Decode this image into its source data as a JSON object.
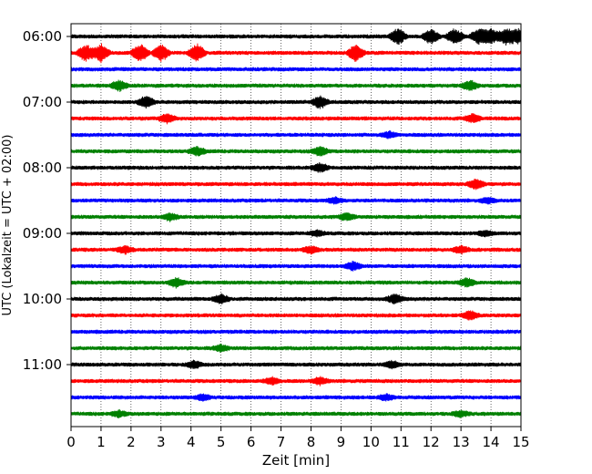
{
  "chart_data": {
    "type": "line",
    "xlabel": "Zeit  [min]",
    "ylabel": "UTC (Lokalzeit = UTC + 02:00)",
    "xlim": [
      0,
      15
    ],
    "x_ticks": [
      0,
      1,
      2,
      3,
      4,
      5,
      6,
      7,
      8,
      9,
      10,
      11,
      12,
      13,
      14,
      15
    ],
    "y_ticks": [
      "06:00",
      "07:00",
      "08:00",
      "09:00",
      "10:00",
      "11:00"
    ],
    "y_start": "06:00",
    "trace_interval_min": 15,
    "trace_count": 24,
    "trace_colors": [
      "#000000",
      "#ff0000",
      "#0000ff",
      "#008000"
    ],
    "grid_vertical": true,
    "grid_style": "dotted",
    "events": [
      {
        "trace": 0,
        "minutes": [
          10.9,
          12.0,
          12.8,
          13.6,
          14.0,
          14.5,
          14.9
        ],
        "amp": 0.9
      },
      {
        "trace": 1,
        "minutes": [
          0.5,
          1.0,
          2.3,
          3.0,
          4.2,
          9.5
        ],
        "amp": 1.0
      },
      {
        "trace": 3,
        "minutes": [
          1.6,
          13.3
        ],
        "amp": 0.6
      },
      {
        "trace": 4,
        "minutes": [
          2.5,
          8.3
        ],
        "amp": 0.7
      },
      {
        "trace": 5,
        "minutes": [
          3.2,
          13.4
        ],
        "amp": 0.5
      },
      {
        "trace": 6,
        "minutes": [
          10.6
        ],
        "amp": 0.35
      },
      {
        "trace": 7,
        "minutes": [
          4.2,
          8.3
        ],
        "amp": 0.5
      },
      {
        "trace": 8,
        "minutes": [
          8.3
        ],
        "amp": 0.5
      },
      {
        "trace": 9,
        "minutes": [
          13.5
        ],
        "amp": 0.6
      },
      {
        "trace": 10,
        "minutes": [
          8.8,
          13.9
        ],
        "amp": 0.3
      },
      {
        "trace": 11,
        "minutes": [
          3.3,
          9.2
        ],
        "amp": 0.4
      },
      {
        "trace": 12,
        "minutes": [
          8.2,
          13.8
        ],
        "amp": 0.3
      },
      {
        "trace": 13,
        "minutes": [
          1.8,
          8.0,
          13.0
        ],
        "amp": 0.4
      },
      {
        "trace": 14,
        "minutes": [
          9.4
        ],
        "amp": 0.5
      },
      {
        "trace": 15,
        "minutes": [
          3.5,
          13.2
        ],
        "amp": 0.5
      },
      {
        "trace": 16,
        "minutes": [
          5.0,
          10.8
        ],
        "amp": 0.5
      },
      {
        "trace": 17,
        "minutes": [
          13.3
        ],
        "amp": 0.5
      },
      {
        "trace": 19,
        "minutes": [
          5.0
        ],
        "amp": 0.35
      },
      {
        "trace": 20,
        "minutes": [
          4.1,
          10.7
        ],
        "amp": 0.4
      },
      {
        "trace": 21,
        "minutes": [
          6.7,
          8.3
        ],
        "amp": 0.4
      },
      {
        "trace": 22,
        "minutes": [
          4.4,
          10.5
        ],
        "amp": 0.35
      },
      {
        "trace": 23,
        "minutes": [
          1.6,
          13.0
        ],
        "amp": 0.35
      }
    ]
  }
}
